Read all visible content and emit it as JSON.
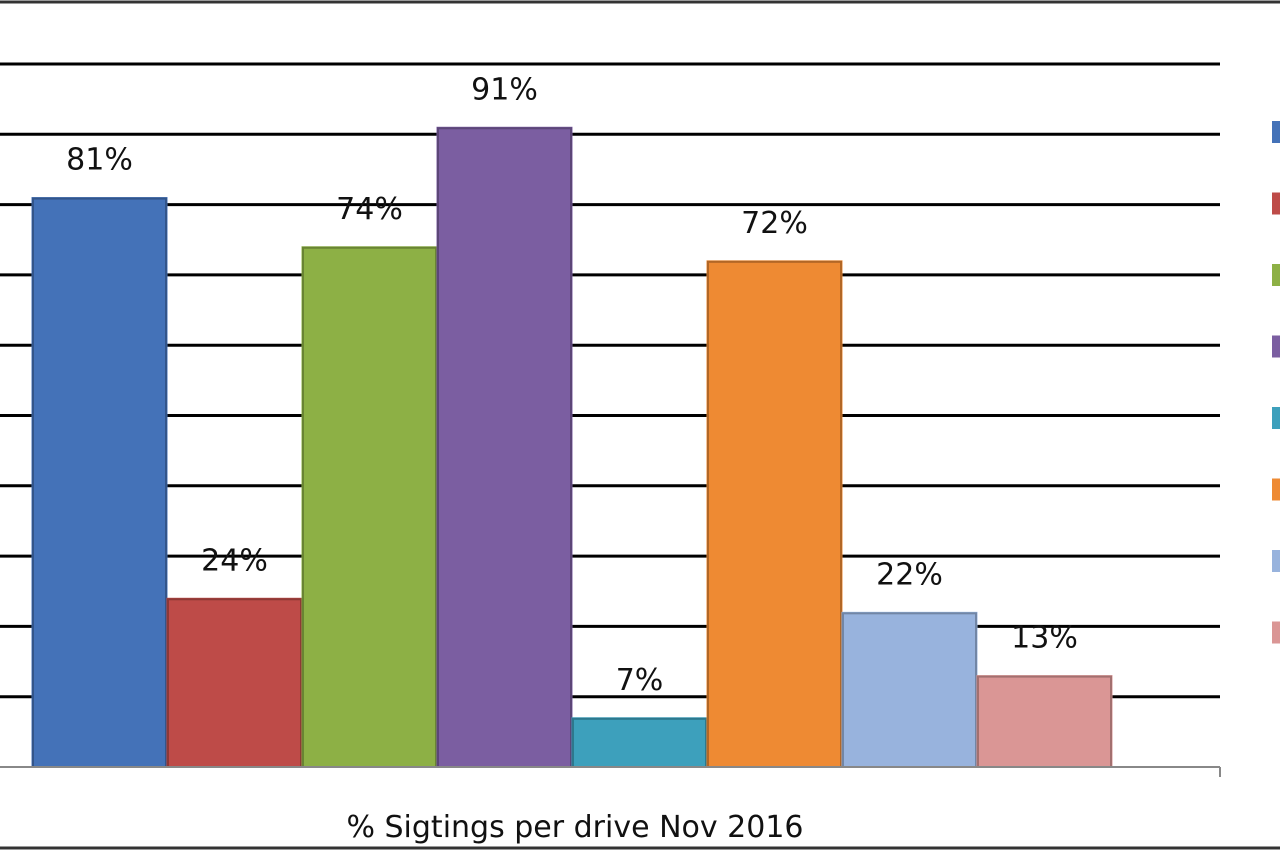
{
  "chart_data": {
    "type": "bar",
    "xlabel": "% Sigtings per drive Nov 2016",
    "ylim": [
      0,
      100
    ],
    "grid": true,
    "legend_placement": "right",
    "series": [
      {
        "value": 81,
        "label": "81%",
        "color": "#4472B8"
      },
      {
        "value": 24,
        "label": "24%",
        "color": "#BE4B48"
      },
      {
        "value": 74,
        "label": "74%",
        "color": "#8DB045"
      },
      {
        "value": 91,
        "label": "91%",
        "color": "#7B5EA1"
      },
      {
        "value": 7,
        "label": "7%",
        "color": "#3DA0BC"
      },
      {
        "value": 72,
        "label": "72%",
        "color": "#EE8A33"
      },
      {
        "value": 22,
        "label": "22%",
        "color": "#98B3DD"
      },
      {
        "value": 13,
        "label": "13%",
        "color": "#DA9695"
      }
    ]
  }
}
